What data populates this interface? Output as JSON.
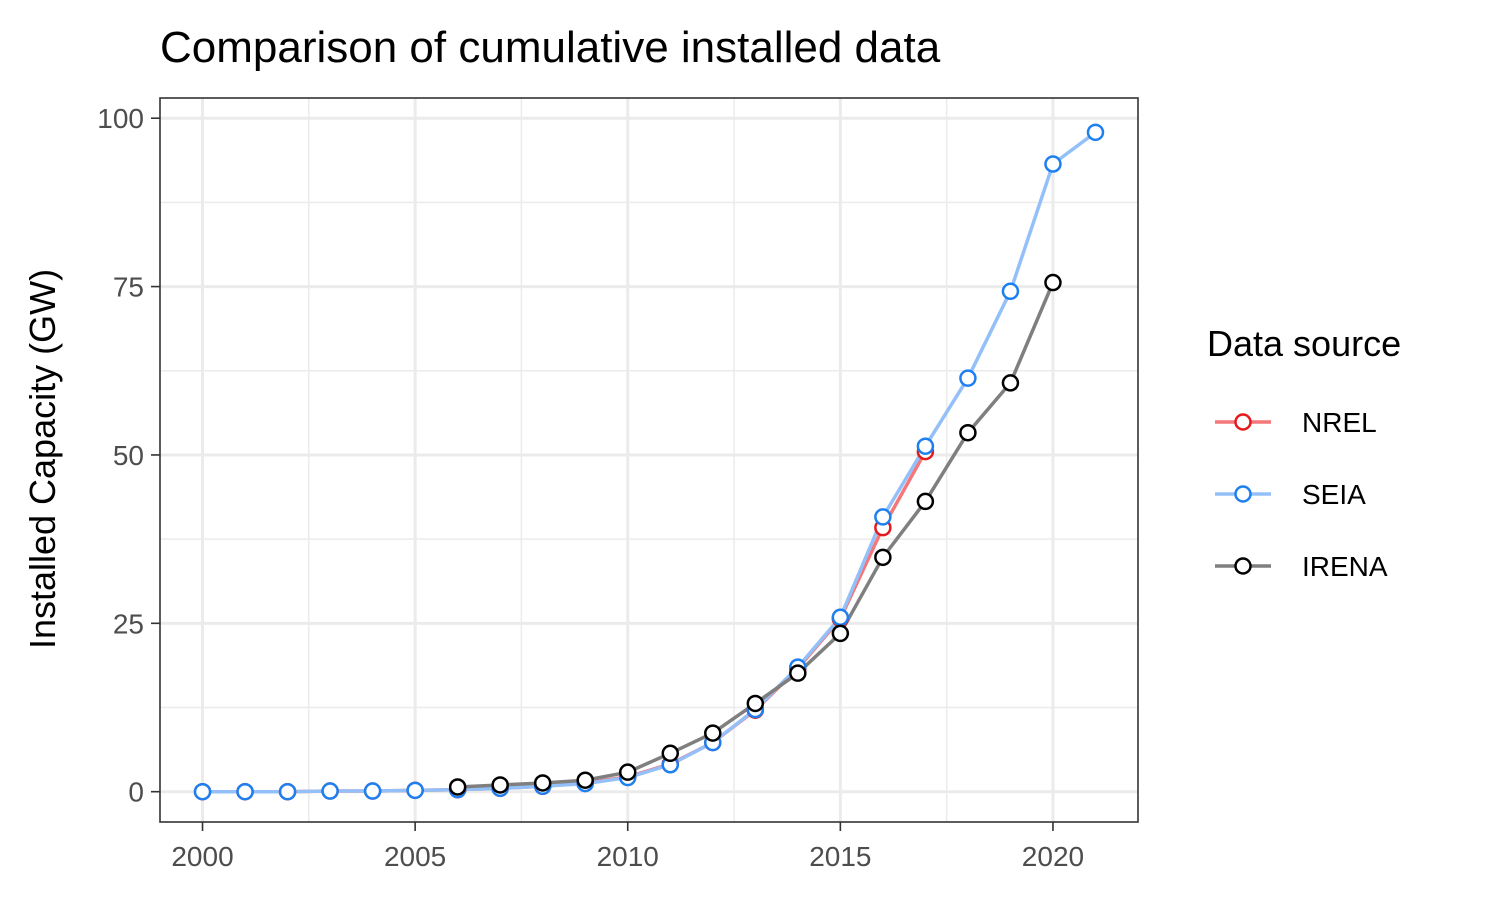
{
  "chart_data": {
    "type": "line",
    "title": "Comparison of cumulative installed data",
    "xlabel": "",
    "ylabel": "Installed Capacity (GW)",
    "xlim": [
      1999,
      2022
    ],
    "ylim": [
      -4.5,
      103
    ],
    "x_ticks": [
      2000,
      2005,
      2010,
      2015,
      2020
    ],
    "y_ticks": [
      0,
      25,
      50,
      75,
      100
    ],
    "grid": true,
    "legend": {
      "title": "Data source",
      "position": "right"
    },
    "series": [
      {
        "name": "NREL",
        "color": "#e41a1c",
        "line_color": "#f4777a",
        "x": [
          2000,
          2001,
          2002,
          2003,
          2004,
          2005,
          2006,
          2007,
          2008,
          2009,
          2010,
          2011,
          2012,
          2013,
          2014,
          2015,
          2016,
          2017
        ],
        "y": [
          0.0,
          0.0,
          0.0,
          0.1,
          0.1,
          0.2,
          0.3,
          0.5,
          0.8,
          1.3,
          2.2,
          4.1,
          7.3,
          12.1,
          18.3,
          25.7,
          39.2,
          50.5
        ]
      },
      {
        "name": "SEIA",
        "color": "#1e7ff0",
        "line_color": "#93c0f8",
        "x": [
          2000,
          2001,
          2002,
          2003,
          2004,
          2005,
          2006,
          2007,
          2008,
          2009,
          2010,
          2011,
          2012,
          2013,
          2014,
          2015,
          2016,
          2017,
          2018,
          2019,
          2020,
          2021
        ],
        "y": [
          0.0,
          0.0,
          0.0,
          0.1,
          0.1,
          0.2,
          0.3,
          0.5,
          0.8,
          1.2,
          2.1,
          4.0,
          7.3,
          12.2,
          18.5,
          25.9,
          40.8,
          51.3,
          61.4,
          74.3,
          93.2,
          97.9
        ]
      },
      {
        "name": "IRENA",
        "color": "#000000",
        "line_color": "#7f7f7f",
        "x": [
          2006,
          2007,
          2008,
          2009,
          2010,
          2011,
          2012,
          2013,
          2014,
          2015,
          2016,
          2017,
          2018,
          2019,
          2020
        ],
        "y": [
          0.7,
          1.0,
          1.3,
          1.7,
          2.9,
          5.7,
          8.7,
          13.1,
          17.6,
          23.5,
          34.8,
          43.1,
          53.3,
          60.7,
          75.6
        ]
      }
    ]
  }
}
